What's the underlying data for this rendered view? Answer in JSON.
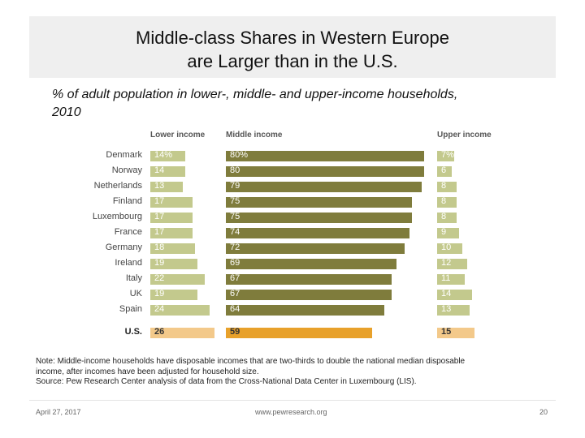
{
  "slide": {
    "title_line1": "Middle-class Shares in Western Europe",
    "title_line2": "are Larger than in the U.S.",
    "subtitle_line1": "% of adult population in lower-, middle- and upper-income households,",
    "subtitle_line2": "2010",
    "note_line1": "Note: Middle-income households have disposable incomes that are two-thirds to double the national median disposable",
    "note_line2": "income, after incomes have been adjusted for household size.",
    "source": "Source: Pew Research Center analysis of data from the Cross-National Data Center in Luxembourg (LIS).",
    "date": "April 27, 2017",
    "url": "www.pewresearch.org",
    "page_number": "20"
  },
  "chart_data": {
    "type": "bar",
    "orientation": "horizontal",
    "categories": [
      "Denmark",
      "Norway",
      "Netherlands",
      "Finland",
      "Luxembourg",
      "France",
      "Germany",
      "Ireland",
      "Italy",
      "UK",
      "Spain",
      "U.S."
    ],
    "series": [
      {
        "name": "Lower income",
        "values": [
          14,
          14,
          13,
          17,
          17,
          17,
          18,
          19,
          22,
          19,
          24,
          26
        ],
        "labels": [
          "14%",
          "14",
          "13",
          "17",
          "17",
          "17",
          "18",
          "19",
          "22",
          "19",
          "24",
          "26"
        ]
      },
      {
        "name": "Middle income",
        "values": [
          80,
          80,
          79,
          75,
          75,
          74,
          72,
          69,
          67,
          67,
          64,
          59
        ],
        "labels": [
          "80%",
          "80",
          "79",
          "75",
          "75",
          "74",
          "72",
          "69",
          "67",
          "67",
          "64",
          "59"
        ]
      },
      {
        "name": "Upper income",
        "values": [
          7,
          6,
          8,
          8,
          8,
          9,
          10,
          12,
          11,
          14,
          13,
          15
        ],
        "labels": [
          "7%",
          "6",
          "8",
          "8",
          "8",
          "9",
          "10",
          "12",
          "11",
          "14",
          "13",
          "15"
        ]
      }
    ],
    "highlight_category": "U.S.",
    "colors": {
      "europe_bars": [
        "#c3c98d",
        "#7f7c3c",
        "#c3c98d"
      ],
      "us_bars": [
        "#f3c98a",
        "#e8a12b",
        "#f3c98a"
      ]
    },
    "grid": false,
    "legend": "none"
  }
}
